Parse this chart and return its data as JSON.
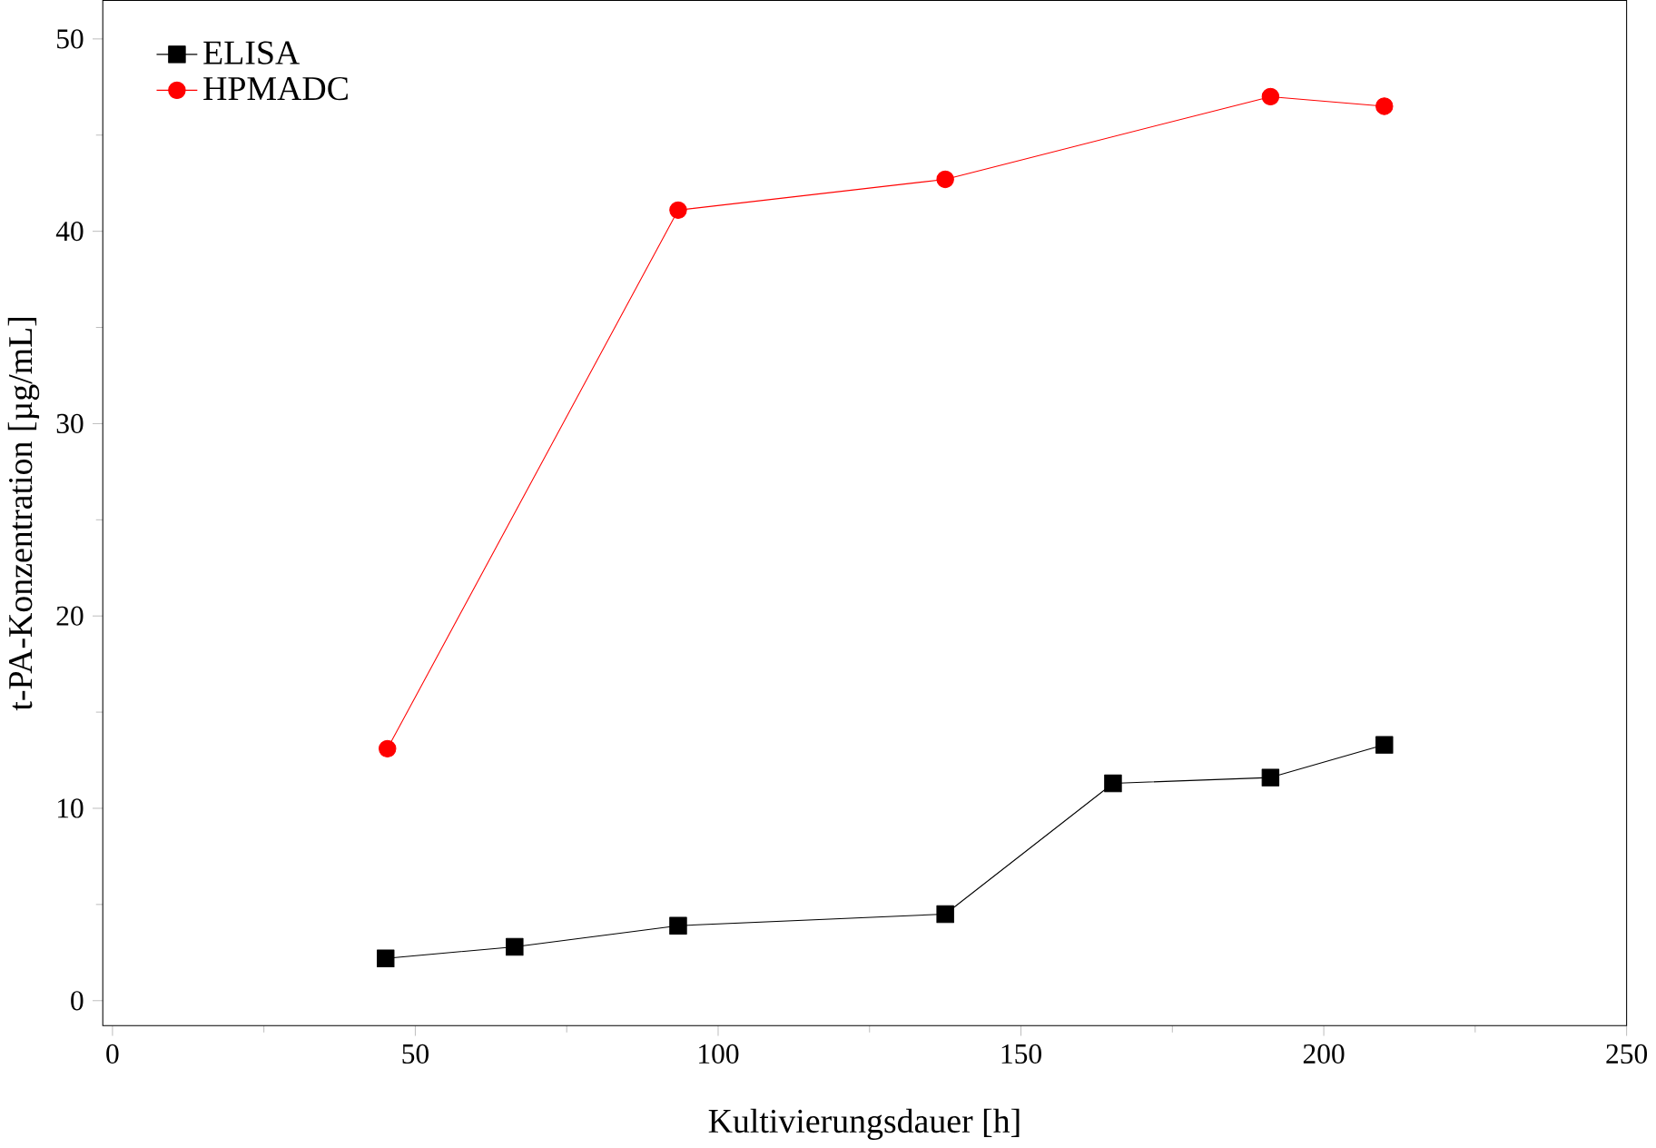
{
  "chart_data": {
    "type": "line",
    "xlabel": "Kultivierungsdauer [h]",
    "ylabel": "t-PA-Konzentration [µg/mL]",
    "xlim": [
      -1.6,
      250
    ],
    "xticks": [
      0,
      50,
      100,
      150,
      200,
      250
    ],
    "ylim": [
      -1.3,
      52
    ],
    "yticks": [
      0,
      10,
      20,
      30,
      40,
      50
    ],
    "legend": "top left",
    "grid": false,
    "line_style": "solid",
    "series": [
      {
        "name": "ELISA",
        "color": "#000000",
        "marker": "square",
        "x": [
          45.1,
          66.4,
          93.4,
          137.5,
          165.2,
          191.2,
          210
        ],
        "values": [
          2.2,
          2.8,
          3.9,
          4.5,
          11.3,
          11.6,
          13.3
        ]
      },
      {
        "name": "HPMADC",
        "color": "#ff0000",
        "marker": "circle",
        "x": [
          45.4,
          93.4,
          137.5,
          191.2,
          210
        ],
        "values": [
          13.1,
          41.1,
          42.7,
          47.0,
          46.5
        ]
      }
    ]
  }
}
